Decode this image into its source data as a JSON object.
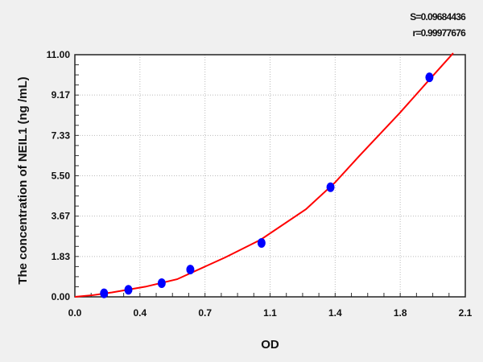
{
  "stats": {
    "s": "S=0.09684436",
    "r": "r=0.99977676"
  },
  "chart_data": {
    "type": "scatter",
    "title": "",
    "xlabel": "OD",
    "ylabel": "The concentration of  NEIL1 (ng /mL)",
    "xlim": [
      0,
      2.1
    ],
    "ylim": [
      0,
      11
    ],
    "x_tick_labels": [
      "0.0",
      "0.4",
      "0.7",
      "1.1",
      "1.4",
      "1.8",
      "2.1"
    ],
    "x_ticks": [
      0,
      0.35,
      0.7,
      1.05,
      1.4,
      1.75,
      2.1
    ],
    "y_tick_labels": [
      "0.00",
      "1.83",
      "3.67",
      "5.50",
      "7.33",
      "9.17",
      "11.00"
    ],
    "y_ticks": [
      0,
      1.833,
      3.667,
      5.5,
      7.333,
      9.167,
      11
    ],
    "grid": true,
    "series": [
      {
        "type": "scatter",
        "color": "#0000ff",
        "x": [
          0.157,
          0.288,
          0.467,
          0.621,
          1.004,
          1.375,
          1.907
        ],
        "y": [
          0.16,
          0.32,
          0.62,
          1.24,
          2.45,
          4.98,
          9.97
        ]
      },
      {
        "type": "line",
        "color": "#ff0000",
        "x": [
          0,
          0.1,
          0.2,
          0.379,
          0.55,
          0.811,
          1.0,
          1.243,
          1.4,
          1.531,
          1.747,
          1.9,
          2.035
        ],
        "y": [
          0,
          0.08,
          0.2,
          0.46,
          0.8,
          1.8,
          2.6,
          3.98,
          5.2,
          6.41,
          8.35,
          9.8,
          11.07
        ]
      }
    ]
  }
}
